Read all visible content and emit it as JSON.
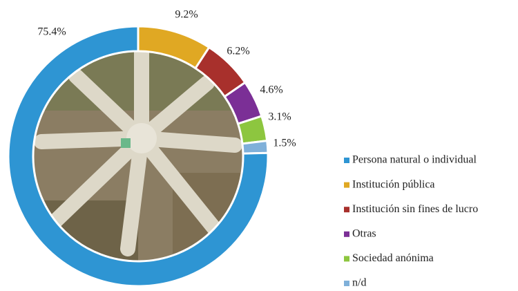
{
  "chart_data": {
    "type": "donut",
    "categories": [
      "Persona natural o individual",
      "Institución pública",
      "Institución sin fines de lucro",
      "Otras",
      "Sociedad anónima",
      "n/d"
    ],
    "values": [
      75.4,
      9.2,
      6.2,
      4.6,
      3.1,
      1.5
    ],
    "value_labels": [
      "75.4%",
      "9.2%",
      "6.2%",
      "4.6%",
      "3.1%",
      "1.5%"
    ],
    "colors": [
      "#2e95d3",
      "#e0a823",
      "#a8302c",
      "#7b2f96",
      "#8dc63f",
      "#7fb0d9"
    ]
  }
}
